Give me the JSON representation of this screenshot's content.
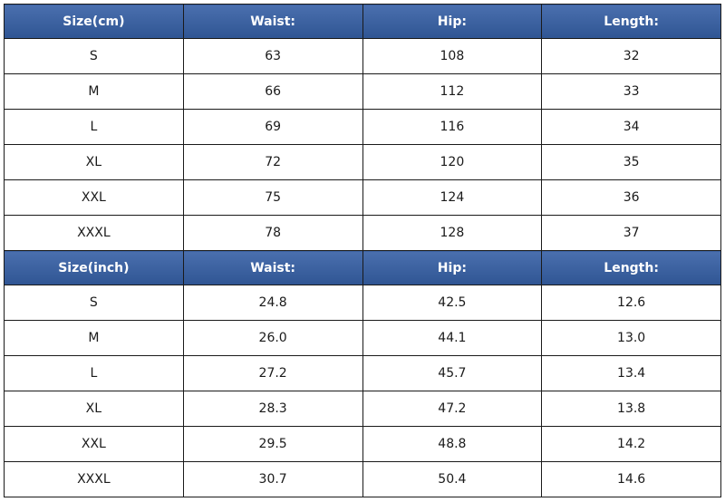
{
  "tables": [
    {
      "header": [
        "Size(cm)",
        "Waist:",
        "Hip:",
        "Length:"
      ],
      "rows": [
        [
          "S",
          "63",
          "108",
          "32"
        ],
        [
          "M",
          "66",
          "112",
          "33"
        ],
        [
          "L",
          "69",
          "116",
          "34"
        ],
        [
          "XL",
          "72",
          "120",
          "35"
        ],
        [
          "XXL",
          "75",
          "124",
          "36"
        ],
        [
          "XXXL",
          "78",
          "128",
          "37"
        ]
      ]
    },
    {
      "header": [
        "Size(inch)",
        "Waist:",
        "Hip:",
        "Length:"
      ],
      "rows": [
        [
          "S",
          "24.8",
          "42.5",
          "12.6"
        ],
        [
          "M",
          "26.0",
          "44.1",
          "13.0"
        ],
        [
          "L",
          "27.2",
          "45.7",
          "13.4"
        ],
        [
          "XL",
          "28.3",
          "47.2",
          "13.8"
        ],
        [
          "XXL",
          "29.5",
          "48.8",
          "14.2"
        ],
        [
          "XXXL",
          "30.7",
          "50.4",
          "14.6"
        ]
      ]
    }
  ]
}
